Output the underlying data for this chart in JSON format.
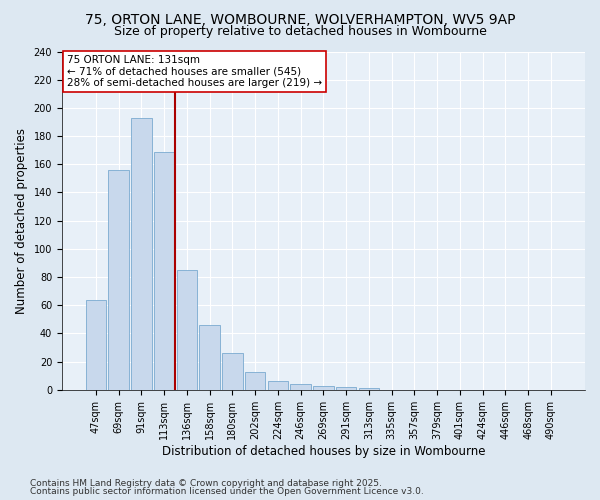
{
  "title_line1": "75, ORTON LANE, WOMBOURNE, WOLVERHAMPTON, WV5 9AP",
  "title_line2": "Size of property relative to detached houses in Wombourne",
  "xlabel": "Distribution of detached houses by size in Wombourne",
  "ylabel": "Number of detached properties",
  "categories": [
    "47sqm",
    "69sqm",
    "91sqm",
    "113sqm",
    "136sqm",
    "158sqm",
    "180sqm",
    "202sqm",
    "224sqm",
    "246sqm",
    "269sqm",
    "291sqm",
    "313sqm",
    "335sqm",
    "357sqm",
    "379sqm",
    "401sqm",
    "424sqm",
    "446sqm",
    "468sqm",
    "490sqm"
  ],
  "values": [
    64,
    156,
    193,
    169,
    85,
    46,
    26,
    13,
    6,
    4,
    3,
    2,
    1,
    0,
    0,
    0,
    0,
    0,
    0,
    0,
    0
  ],
  "bar_color": "#c8d8ec",
  "bar_edge_color": "#7aaad0",
  "annotation_line1": "75 ORTON LANE: 131sqm",
  "annotation_line2": "← 71% of detached houses are smaller (545)",
  "annotation_line3": "28% of semi-detached houses are larger (219) →",
  "annotation_box_color": "#ffffff",
  "annotation_box_edge": "#cc0000",
  "vline_color": "#aa0000",
  "vline_x_pos": 3.48,
  "ylim": [
    0,
    240
  ],
  "yticks": [
    0,
    20,
    40,
    60,
    80,
    100,
    120,
    140,
    160,
    180,
    200,
    220,
    240
  ],
  "footer_line1": "Contains HM Land Registry data © Crown copyright and database right 2025.",
  "footer_line2": "Contains public sector information licensed under the Open Government Licence v3.0.",
  "bg_color": "#dde8f2",
  "plot_bg_color": "#e8f0f8",
  "grid_color": "#ffffff",
  "title_fontsize": 10,
  "subtitle_fontsize": 9,
  "axis_label_fontsize": 8.5,
  "tick_fontsize": 7,
  "annot_fontsize": 7.5,
  "footer_fontsize": 6.5
}
